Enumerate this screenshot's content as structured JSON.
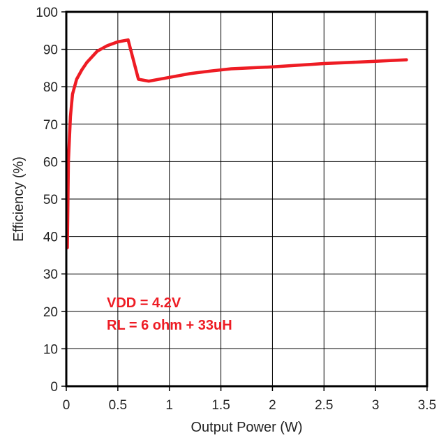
{
  "chart_data": {
    "type": "line",
    "title": "",
    "xlabel": "Output Power (W)",
    "ylabel": "Efficiency (%)",
    "xlim": [
      0,
      3.5
    ],
    "ylim": [
      0,
      100
    ],
    "x_ticks": [
      "0",
      "0.5",
      "1",
      "1.5",
      "2",
      "2.5",
      "3",
      "3.5"
    ],
    "y_ticks": [
      "0",
      "10",
      "20",
      "30",
      "40",
      "50",
      "60",
      "70",
      "80",
      "90",
      "100"
    ],
    "grid": true,
    "annotations": [
      "VDD = 4.2V",
      "RL = 6 ohm + 33uH"
    ],
    "series": [
      {
        "color": "#ee1c24",
        "x": [
          0.01,
          0.02,
          0.04,
          0.06,
          0.1,
          0.15,
          0.2,
          0.3,
          0.4,
          0.5,
          0.6,
          0.7,
          0.8,
          1.0,
          1.2,
          1.4,
          1.6,
          2.0,
          2.5,
          3.0,
          3.3
        ],
        "y": [
          37,
          60,
          72,
          78,
          82,
          84.5,
          86.5,
          89.5,
          91,
          92,
          92.5,
          82,
          81.5,
          82.5,
          83.5,
          84.2,
          84.8,
          85.3,
          86.2,
          86.8,
          87.2
        ]
      }
    ]
  }
}
